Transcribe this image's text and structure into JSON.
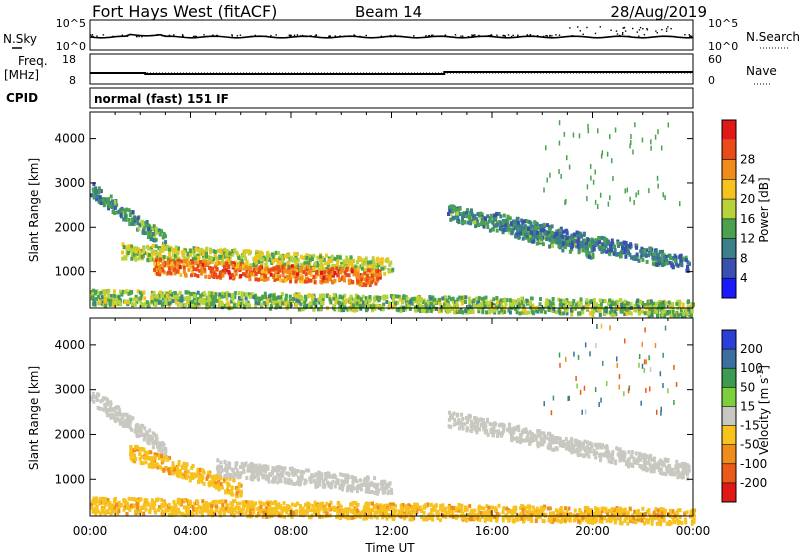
{
  "header": {
    "radar": "Fort Hays West (fitACF)",
    "beam": "Beam 14",
    "date": "28/Aug/2019"
  },
  "strip_labels": {
    "nsky": "N.Sky",
    "nsearch": "N.Search",
    "freq": "Freq.",
    "freq_unit": "[MHz]",
    "nave": "Nave",
    "cpid": "CPID",
    "cpid_text": "normal (fast) 151 IF",
    "nsky_ticks": [
      "10^5",
      "10^0"
    ],
    "nsearch_ticks": [
      "10^5",
      "10^0"
    ],
    "freq_ticks": [
      "18",
      "8"
    ],
    "nave_ticks": [
      "60",
      "0"
    ]
  },
  "chart_data": [
    {
      "type": "heatmap",
      "parameter": "power",
      "ylabel": "Slant Range [km]",
      "xlabel": "",
      "x_tick_labels": [
        "00:00",
        "04:00",
        "08:00",
        "12:00",
        "16:00",
        "20:00",
        "00:00"
      ],
      "xlim_hours": [
        0,
        24
      ],
      "ylim_km": [
        180,
        4600
      ],
      "y_ticks": [
        1000,
        2000,
        3000,
        4000
      ],
      "colorbar": {
        "label": "Power [dB]",
        "ticks": [
          4,
          8,
          12,
          16,
          20,
          24,
          28
        ],
        "colors": [
          "#1a1aff",
          "#3a4fb0",
          "#3a7f8a",
          "#4aa24e",
          "#b8d23a",
          "#f7c21e",
          "#f08c1a",
          "#ea4a18",
          "#e01818"
        ]
      },
      "echo_regions": [
        {
          "t_start_h": 0.0,
          "t_end_h": 3.0,
          "range_start_km": 2900,
          "range_end_km": 1700,
          "level_db": 10
        },
        {
          "t_start_h": 1.2,
          "t_end_h": 12.0,
          "range_start_km": 1500,
          "range_end_km": 1150,
          "level_db": 16
        },
        {
          "t_start_h": 2.5,
          "t_end_h": 11.5,
          "range_start_km": 1150,
          "range_end_km": 900,
          "level_db": 26
        },
        {
          "t_start_h": 14.2,
          "t_end_h": 20.0,
          "range_start_km": 2400,
          "range_end_km": 1500,
          "level_db": 10
        },
        {
          "t_start_h": 16.0,
          "t_end_h": 23.8,
          "range_start_km": 2200,
          "range_end_km": 1200,
          "level_db": 8
        },
        {
          "t_start_h": 0.0,
          "t_end_h": 24.0,
          "range_start_km": 450,
          "range_end_km": 200,
          "level_db": 14
        }
      ]
    },
    {
      "type": "heatmap",
      "parameter": "velocity",
      "ylabel": "Slant Range [km]",
      "xlabel": "Time UT",
      "x_tick_labels": [
        "00:00",
        "04:00",
        "08:00",
        "12:00",
        "16:00",
        "20:00",
        "00:00"
      ],
      "xlim_hours": [
        0,
        24
      ],
      "ylim_km": [
        180,
        4600
      ],
      "y_ticks": [
        1000,
        2000,
        3000,
        4000
      ],
      "colorbar": {
        "label": "Velocity [m s^-1]",
        "ticks": [
          "200",
          "100",
          "50",
          "15",
          "-15",
          "-50",
          "-100",
          "-200"
        ],
        "colors": [
          "#2a3fd6",
          "#3a6fa0",
          "#3d9a52",
          "#7cd03c",
          "#c8c8c0",
          "#f7c21e",
          "#f08c1a",
          "#ea5a18",
          "#e01818"
        ]
      },
      "echo_regions": [
        {
          "t_start_h": 0.0,
          "t_end_h": 3.0,
          "range_start_km": 2900,
          "range_end_km": 1700,
          "velocity_ms": 0
        },
        {
          "t_start_h": 1.5,
          "t_end_h": 6.0,
          "range_start_km": 1650,
          "range_end_km": 800,
          "velocity_ms": -40
        },
        {
          "t_start_h": 5.0,
          "t_end_h": 12.0,
          "range_start_km": 1300,
          "range_end_km": 850,
          "velocity_ms": 0
        },
        {
          "t_start_h": 14.2,
          "t_end_h": 23.8,
          "range_start_km": 2400,
          "range_end_km": 1200,
          "velocity_ms": 0
        },
        {
          "t_start_h": 0.0,
          "t_end_h": 24.0,
          "range_start_km": 450,
          "range_end_km": 200,
          "velocity_ms": -40
        }
      ]
    }
  ]
}
